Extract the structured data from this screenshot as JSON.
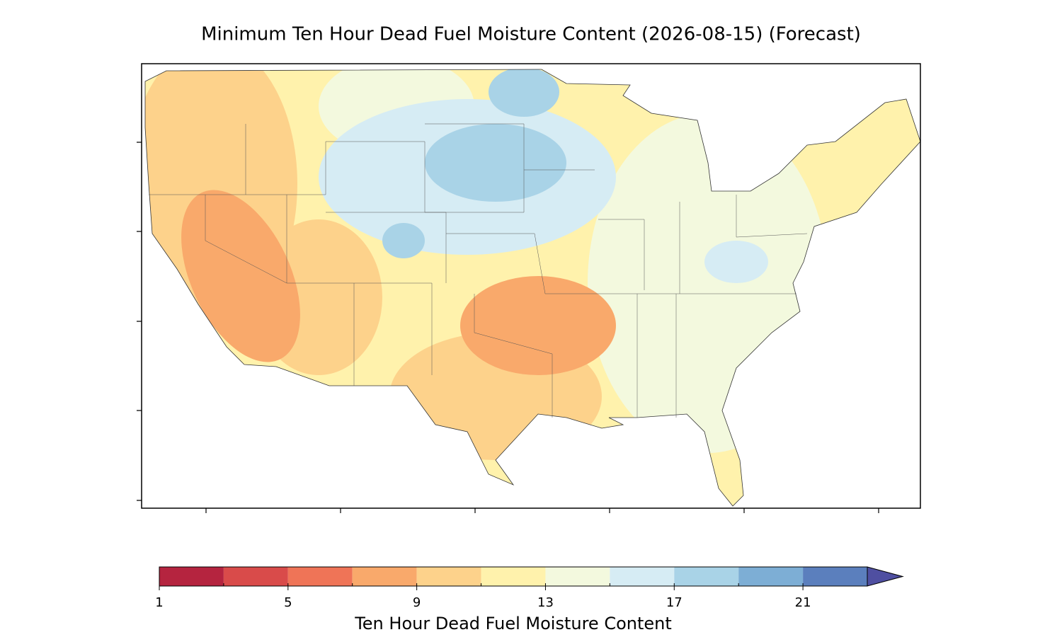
{
  "title": "Minimum Ten Hour Dead Fuel Moisture Content (2026-08-15) (Forecast)",
  "colorbar": {
    "label": "Ten Hour Dead Fuel Moisture Content",
    "levels": [
      1,
      3,
      5,
      7,
      9,
      11,
      13,
      15,
      17,
      19,
      21,
      23
    ],
    "colors": [
      "#b5243f",
      "#d94b4a",
      "#ef7457",
      "#f9a96b",
      "#fdd28b",
      "#fff2ac",
      "#f3f9de",
      "#d6ecf4",
      "#a9d3e7",
      "#7daed5",
      "#5b7fbd"
    ],
    "extend_color": "#4f4fa1",
    "ticks": [
      1,
      5,
      9,
      13,
      17,
      21
    ]
  }
}
